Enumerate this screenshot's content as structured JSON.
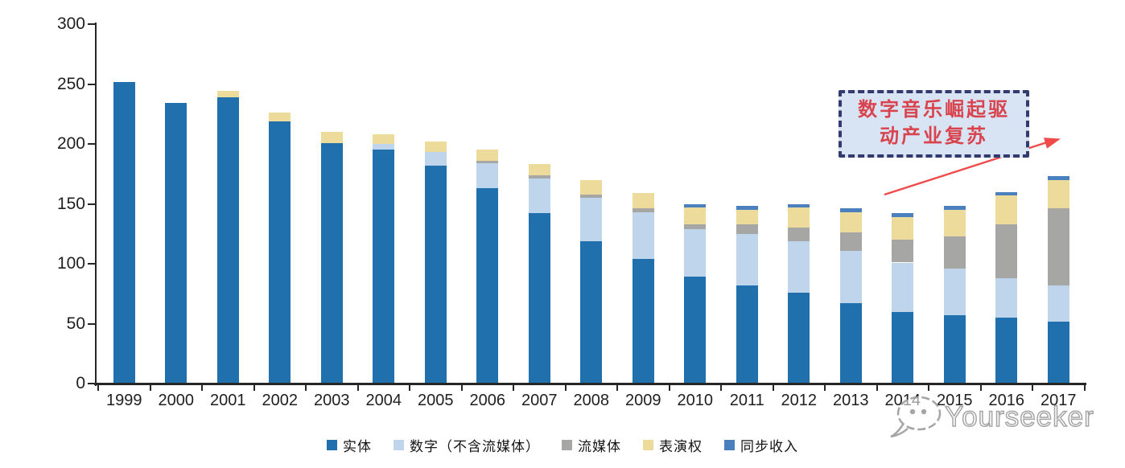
{
  "chart_data": {
    "type": "bar",
    "stacked": true,
    "title": "",
    "xlabel": "",
    "ylabel": "",
    "ylim": [
      0,
      300
    ],
    "yticks": [
      0,
      50,
      100,
      150,
      200,
      250,
      300
    ],
    "grid": false,
    "legend_position": "bottom",
    "categories": [
      "1999",
      "2000",
      "2001",
      "2002",
      "2003",
      "2004",
      "2005",
      "2006",
      "2007",
      "2008",
      "2009",
      "2010",
      "2011",
      "2012",
      "2013",
      "2014",
      "2015",
      "2016",
      "2017"
    ],
    "series": [
      {
        "name": "实体",
        "color": "#2070AE",
        "values": [
          252,
          234,
          239,
          219,
          201,
          195,
          182,
          163,
          142,
          119,
          104,
          89,
          82,
          76,
          67,
          60,
          57,
          55,
          52
        ]
      },
      {
        "name": "数字（不含流媒体）",
        "color": "#BFD5EC",
        "values": [
          0,
          0,
          0,
          0,
          0,
          5,
          11,
          21,
          29,
          36,
          39,
          40,
          43,
          43,
          44,
          41,
          39,
          33,
          30
        ]
      },
      {
        "name": "流媒体",
        "color": "#A6A6A4",
        "values": [
          0,
          0,
          0,
          0,
          0,
          0,
          0,
          2,
          3,
          3,
          3,
          4,
          8,
          11,
          15,
          19,
          27,
          45,
          64
        ]
      },
      {
        "name": "表演权",
        "color": "#ECDB9B",
        "values": [
          0,
          0,
          5,
          7,
          9,
          8,
          9,
          9,
          9,
          12,
          13,
          14,
          12,
          17,
          17,
          19,
          22,
          24,
          24
        ]
      },
      {
        "name": "同步收入",
        "color": "#4B80BE",
        "values": [
          0,
          0,
          0,
          0,
          0,
          0,
          0,
          0,
          0,
          0,
          0,
          3,
          3,
          3,
          3,
          3,
          3,
          3,
          3
        ]
      }
    ],
    "totals": [
      252,
      234,
      244,
      226,
      210,
      208,
      202,
      195,
      183,
      170,
      159,
      150,
      148,
      150,
      146,
      142,
      148,
      160,
      173
    ]
  },
  "annotation": {
    "line1": "数字音乐崛起驱",
    "line2": "动产业复苏",
    "box_fill": "#D8E4F3",
    "border_color": "#333A6E",
    "text_color": "#D9434D",
    "arrow_color": "#F04A4A"
  },
  "watermark": {
    "brand": "Yourseeker"
  }
}
